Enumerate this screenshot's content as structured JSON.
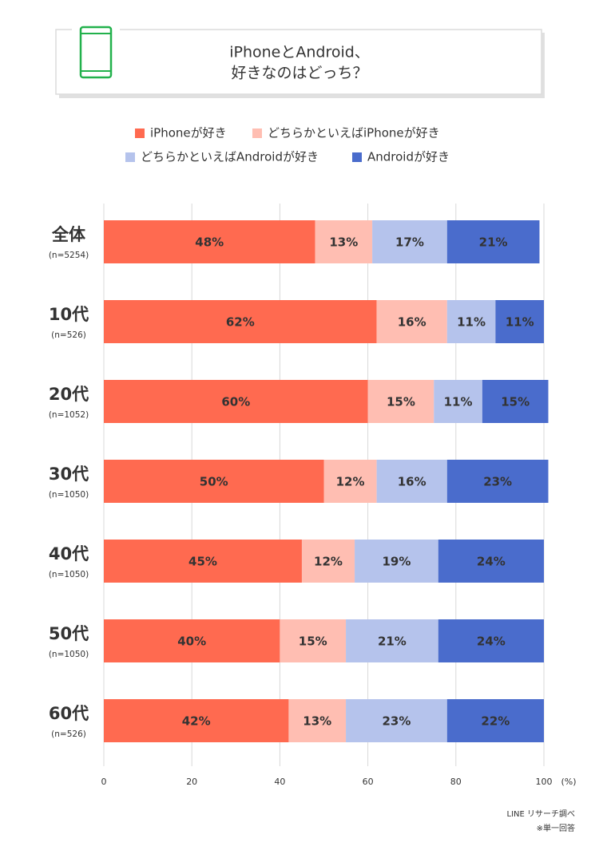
{
  "chart_data": {
    "type": "stacked-barh",
    "title": [
      "iPhoneとAndroid、",
      "好きなのはどっち？"
    ],
    "categories": [
      "全体",
      "10代",
      "20代",
      "30代",
      "40代",
      "50代",
      "60代"
    ],
    "category_notes": [
      "(n=5254)",
      "(n=526)",
      "(n=1052)",
      "(n=1050)",
      "(n=1050)",
      "(n=1050)",
      "(n=526)"
    ],
    "series": [
      {
        "name": "iPhoneが好き",
        "color": "#ff6a50",
        "label_color": "#ffffff",
        "values": [
          48,
          62,
          60,
          50,
          45,
          40,
          42
        ],
        "value_labels": [
          "48%",
          "62%",
          "60%",
          "50%",
          "45%",
          "40%",
          "42%"
        ]
      },
      {
        "name": "どちらかといえばiPhoneが好き",
        "color": "#ffbeb2",
        "label_color": "#f0644a",
        "values": [
          13,
          16,
          15,
          12,
          12,
          15,
          13
        ],
        "value_labels": [
          "13%",
          "16%",
          "15%",
          "12%",
          "12%",
          "15%",
          "13%"
        ]
      },
      {
        "name": "どちらかといえばAndroidが好き",
        "color": "#b5c3ec",
        "label_color": "#4a6ccc",
        "values": [
          17,
          11,
          11,
          16,
          19,
          21,
          23
        ],
        "value_labels": [
          "17%",
          "11%",
          "11%",
          "16%",
          "19%",
          "21%",
          "23%"
        ]
      },
      {
        "name": "Androidが好き",
        "color": "#4a6ccc",
        "label_color": "#ffffff",
        "values": [
          21,
          11,
          15,
          23,
          24,
          24,
          22
        ],
        "value_labels": [
          "21%",
          "11%",
          "15%",
          "23%",
          "24%",
          "24%",
          "22%"
        ]
      }
    ],
    "xlim": [
      0,
      100
    ],
    "xticks": [
      0,
      20,
      40,
      60,
      80,
      100
    ],
    "x_unit": "(%)",
    "grid": true,
    "source": "LINE リサーチ調べ",
    "note": "※単一回答"
  }
}
